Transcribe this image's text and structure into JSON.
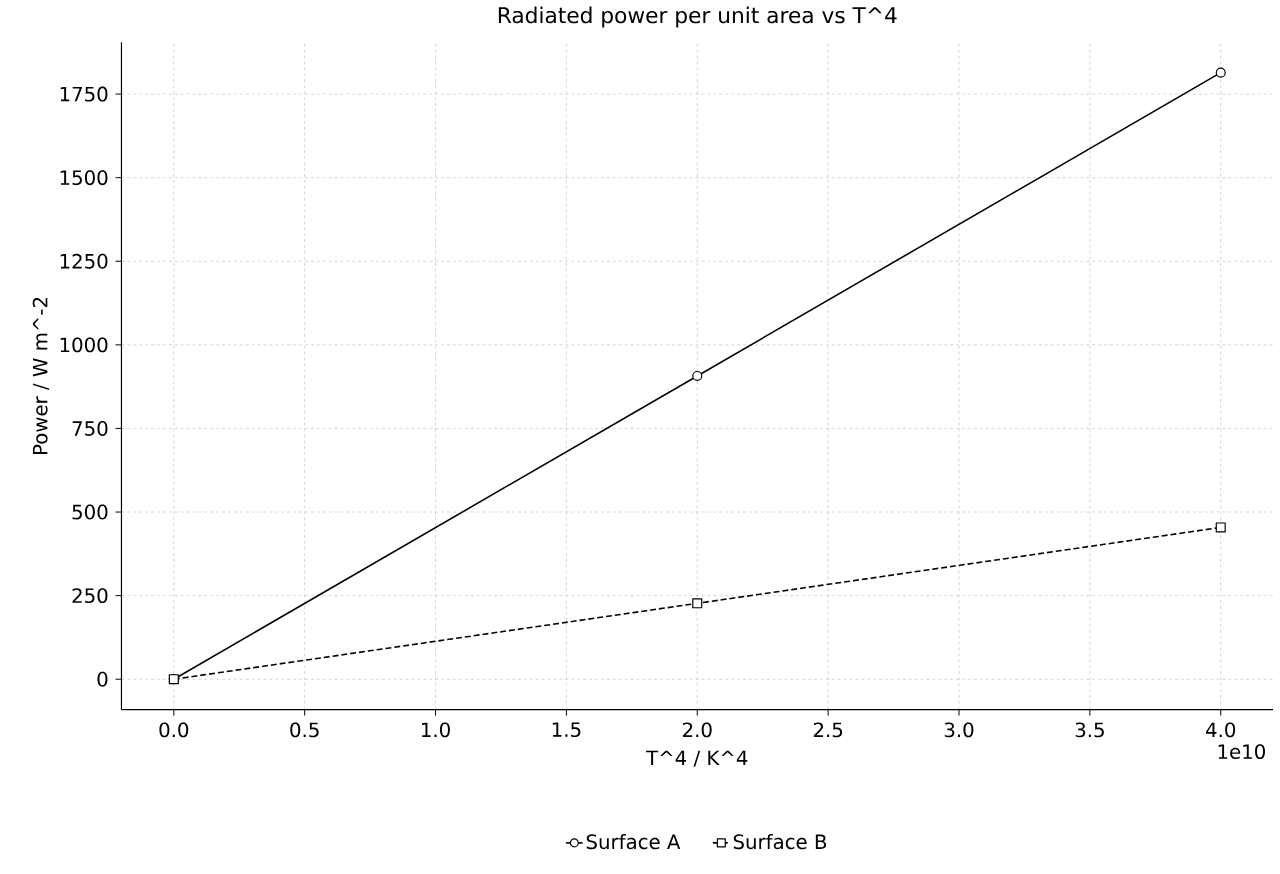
{
  "chart_data": {
    "type": "line",
    "title": "Radiated power per unit area vs T^4",
    "xlabel": "T^4 / K^4",
    "ylabel": "Power / W m^-2",
    "x": [
      0,
      2,
      4
    ],
    "series": [
      {
        "name": "Surface A",
        "color": "#000000",
        "values": [
          0,
          907,
          1814
        ],
        "marker": "circle",
        "line_style": "solid"
      },
      {
        "name": "Surface B",
        "color": "#000000",
        "values": [
          0,
          227,
          454
        ],
        "marker": "square",
        "line_style": "dashed"
      }
    ],
    "xlim": [
      -0.2,
      4.2
    ],
    "ylim": [
      -91,
      1905
    ],
    "xticks": [
      {
        "value": 0,
        "label": "0.0"
      },
      0.5,
      {
        "value": 1,
        "label": "1.0"
      },
      1.5,
      {
        "value": 2,
        "label": "2.0"
      },
      2.5,
      {
        "value": 3,
        "label": "3.0"
      },
      3.5,
      {
        "value": 4,
        "label": "4.0"
      }
    ],
    "yticks": [
      0,
      250,
      500,
      750,
      1000,
      1250,
      1500,
      1750
    ],
    "annotations": [
      "1e10"
    ],
    "grid": true,
    "legend": "bottom"
  }
}
